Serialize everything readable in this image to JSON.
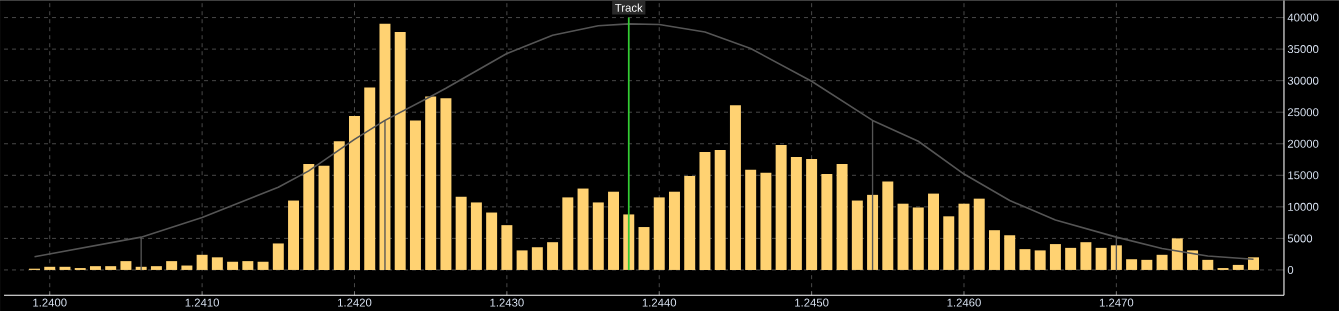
{
  "chart_data": {
    "type": "histogram",
    "series": [
      {
        "color": "#ffd272",
        "bins": [
          1.23985,
          1.23995,
          1.24005,
          1.24015,
          1.24025,
          1.24035,
          1.24045,
          1.24055,
          1.24065,
          1.24075,
          1.24085,
          1.24095,
          1.24105,
          1.24115,
          1.24125,
          1.24135,
          1.24145,
          1.24155,
          1.24165,
          1.24175,
          1.24185,
          1.24195,
          1.24205,
          1.24215,
          1.24225,
          1.24235,
          1.24245,
          1.24255,
          1.24265,
          1.24275,
          1.24285,
          1.24295,
          1.24305,
          1.24315,
          1.24325,
          1.24335,
          1.24345,
          1.24355,
          1.24365,
          1.24375,
          1.24385,
          1.24395,
          1.24405,
          1.24415,
          1.24425,
          1.24435,
          1.24445,
          1.24455,
          1.24465,
          1.24475,
          1.24485,
          1.24495,
          1.24505,
          1.24515,
          1.24525,
          1.24535,
          1.24545,
          1.24555,
          1.24565,
          1.24575,
          1.24585,
          1.24595,
          1.24605,
          1.24615,
          1.24625,
          1.24635,
          1.24645,
          1.24655,
          1.24665,
          1.24675,
          1.24685,
          1.24695,
          1.24705,
          1.24715,
          1.24725,
          1.24735,
          1.24745,
          1.24755,
          1.24765,
          1.24775,
          1.24785,
          1.24795
        ],
        "values": [
          200,
          500,
          500,
          300,
          600,
          600,
          1400,
          500,
          600,
          1400,
          700,
          2400,
          2000,
          1300,
          1400,
          1300,
          4200,
          11000,
          16800,
          16500,
          20400,
          24400,
          28900,
          39000,
          37700,
          23700,
          27500,
          27200,
          11600,
          10700,
          9100,
          7100,
          3100,
          3600,
          4400,
          11500,
          12900,
          10700,
          12400,
          8800,
          6800,
          11500,
          12400,
          14900,
          18700,
          19000,
          26100,
          15900,
          15400,
          19800,
          17900,
          17600,
          15200,
          16800,
          11000,
          11900,
          14000,
          10500,
          9900,
          12100,
          8500,
          10500,
          11300,
          6300,
          5500,
          3300,
          3100,
          4100,
          3500,
          4400,
          3500,
          3900,
          1700,
          1600,
          2400,
          5000,
          3100,
          1600,
          300,
          800,
          2000
        ]
      },
      {
        "type": "line",
        "color": "#555555",
        "x": [
          1.2399,
          1.2406,
          1.241,
          1.2415,
          1.2417,
          1.242,
          1.2422,
          1.2425,
          1.2426,
          1.243,
          1.2433,
          1.2436,
          1.2438,
          1.244,
          1.2443,
          1.2446,
          1.245,
          1.2454,
          1.2457,
          1.246,
          1.2463,
          1.2466,
          1.247,
          1.2473,
          1.2476,
          1.2479
        ],
        "values": [
          2100,
          5200,
          8300,
          13100,
          15700,
          20700,
          23700,
          27500,
          28800,
          34300,
          37200,
          38700,
          39000,
          38900,
          37700,
          35100,
          29900,
          23700,
          20400,
          15200,
          11000,
          7900,
          5200,
          3400,
          2200,
          1700
        ]
      }
    ],
    "ref_lines": [
      {
        "axis": "x",
        "value": 1.2406,
        "color": "#555555"
      },
      {
        "axis": "x",
        "value": 1.2422,
        "color": "#555555"
      },
      {
        "axis": "x",
        "value": 1.2438,
        "color": "#33cc33",
        "label": "Track"
      },
      {
        "axis": "x",
        "value": 1.2454,
        "color": "#555555"
      },
      {
        "axis": "x",
        "value": 1.247,
        "color": "#555555"
      }
    ],
    "xlim": [
      1.2397,
      1.2481
    ],
    "xticks": [
      {
        "value": 1.24,
        "label": "1.2400"
      },
      {
        "value": 1.241,
        "label": "1.2410"
      },
      {
        "value": 1.242,
        "label": "1.2420"
      },
      {
        "value": 1.243,
        "label": "1.2430"
      },
      {
        "value": 1.244,
        "label": "1.2440"
      },
      {
        "value": 1.245,
        "label": "1.2450"
      },
      {
        "value": 1.246,
        "label": "1.2460"
      },
      {
        "value": 1.247,
        "label": "1.2470"
      }
    ],
    "ylim": [
      -4000,
      42700
    ],
    "yticks": [
      0,
      5000,
      10000,
      15000,
      20000,
      25000,
      30000,
      35000,
      40000
    ],
    "grid": true
  }
}
